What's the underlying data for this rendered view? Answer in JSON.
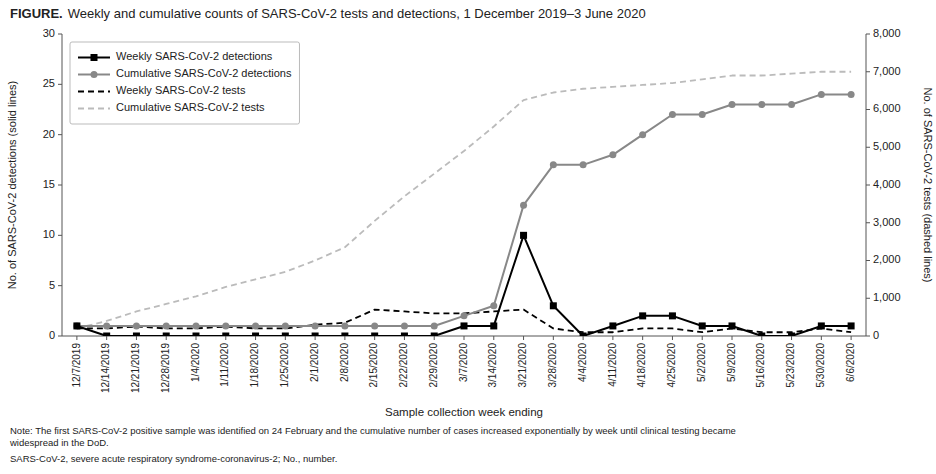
{
  "chart_data": {
    "type": "line",
    "title": "FIGURE.",
    "subtitle": "Weekly and cumulative counts of SARS-CoV-2 tests and detections, 1 December 2019–3 June 2020",
    "x_label": "Sample collection week ending",
    "y_label": "No. of SARS-CoV-2 detections (solid lines)",
    "y2_label": "No. of SARS-CoV-2 tests (dashed lines)",
    "annotations": [
      "Note: The first SARS-CoV-2 positive sample was identified on 24 February and the cumulative number of cases increased exponentially by week until clinical testing became\nwidespread in the DoD.",
      "SARS-CoV-2, severe acute respiratory syndrome-coronavirus-2; No., number."
    ],
    "categories": [
      "12/7/2019",
      "12/14/2019",
      "12/21/2019",
      "12/28/2019",
      "1/4/2020",
      "1/11/2020",
      "1/18/2020",
      "1/25/2020",
      "2/1/2020",
      "2/8/2020",
      "2/15/2020",
      "2/22/2020",
      "2/29/2020",
      "3/7/2020",
      "3/14/2020",
      "3/21/2020",
      "3/28/2020",
      "4/4/2020",
      "4/11/2020",
      "4/18/2020",
      "4/25/2020",
      "5/2/2020",
      "5/9/2020",
      "5/16/2020",
      "5/23/2020",
      "5/30/2020",
      "6/6/2020"
    ],
    "series": [
      {
        "name": "Weekly SARS-CoV-2 detections",
        "color": "#000000",
        "line_style": "solid",
        "marker": "square",
        "values": [
          1,
          0,
          0,
          0,
          0,
          0,
          0,
          0,
          0,
          0,
          0,
          0,
          0,
          1,
          1,
          10,
          3,
          0,
          1,
          2,
          2,
          1,
          1,
          0,
          0,
          1,
          1
        ]
      },
      {
        "name": "Cumulative SARS-CoV-2 detections",
        "color": "#888888",
        "line_style": "solid",
        "marker": "circle",
        "values": [
          1,
          1,
          1,
          1,
          1,
          1,
          1,
          1,
          1,
          1,
          1,
          1,
          1,
          2,
          3,
          13,
          17,
          17,
          18,
          20,
          22,
          22,
          23,
          23,
          23,
          24,
          24
        ]
      },
      {
        "name": "Weekly SARS-CoV-2 tests",
        "color": "#000000",
        "line_style": "dashed",
        "marker": "none",
        "axis": "y2",
        "values": [
          200,
          200,
          250,
          200,
          200,
          250,
          200,
          200,
          300,
          350,
          700,
          650,
          600,
          600,
          650,
          700,
          200,
          100,
          100,
          200,
          200,
          100,
          200,
          100,
          100,
          200,
          100
        ]
      },
      {
        "name": "Cumulative SARS-CoV-2 tests",
        "color": "#bbbbbb",
        "line_style": "dashed",
        "marker": "none",
        "axis": "y2",
        "values": [
          200,
          400,
          650,
          850,
          1050,
          1300,
          1500,
          1700,
          2000,
          2350,
          3050,
          3700,
          4300,
          4900,
          5550,
          6250,
          6450,
          6550,
          6600,
          6650,
          6700,
          6800,
          6900,
          6900,
          6950,
          7000,
          7000
        ]
      }
    ],
    "ylim": [
      0,
      30
    ],
    "yticks": [
      0,
      5,
      10,
      15,
      20,
      25,
      30
    ],
    "y2lim": [
      0,
      8000
    ],
    "y2ticks": [
      0,
      {
        "value": 1000,
        "label": "1,000"
      },
      {
        "value": 2000,
        "label": "2,000"
      },
      {
        "value": 3000,
        "label": "3,000"
      },
      {
        "value": 4000,
        "label": "4,000"
      },
      {
        "value": 5000,
        "label": "5,000"
      },
      {
        "value": 6000,
        "label": "6,000"
      },
      {
        "value": 7000,
        "label": "7,000"
      },
      {
        "value": 8000,
        "label": "8,000"
      }
    ],
    "grid": false,
    "legend": "upper left"
  }
}
